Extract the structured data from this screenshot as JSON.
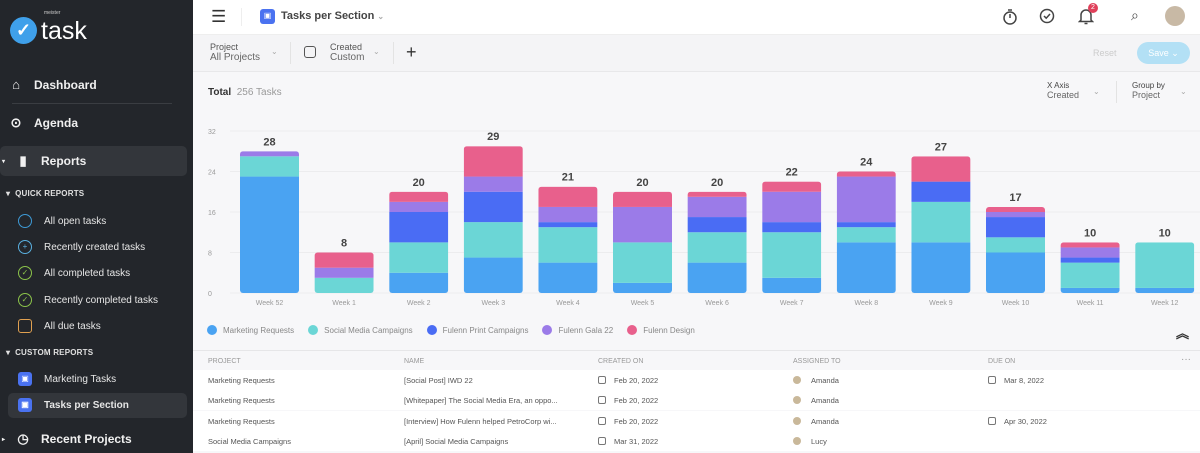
{
  "app": {
    "logo_small": "meister",
    "logo": "task"
  },
  "sidebar": {
    "nav": [
      {
        "label": "Dashboard",
        "icon": "home-icon"
      },
      {
        "label": "Agenda",
        "icon": "agenda-icon"
      },
      {
        "label": "Reports",
        "icon": "bar-chart-icon"
      }
    ],
    "quick_reports_title": "QUICK REPORTS",
    "quick_reports": [
      {
        "label": "All open tasks",
        "icon": "circle-icon",
        "color": "#3e9ad6"
      },
      {
        "label": "Recently created tasks",
        "icon": "plus-circle-icon",
        "color": "#5ab0e0"
      },
      {
        "label": "All completed tasks",
        "icon": "check-circle-icon",
        "color": "#8bc34a"
      },
      {
        "label": "Recently completed tasks",
        "icon": "check-circle-icon",
        "color": "#8bc34a"
      },
      {
        "label": "All due tasks",
        "icon": "calendar-icon",
        "color": "#e0a050"
      }
    ],
    "custom_reports_title": "CUSTOM REPORTS",
    "custom_reports": [
      {
        "label": "Marketing Tasks"
      },
      {
        "label": "Tasks per Section"
      }
    ],
    "recent_projects": "Recent Projects"
  },
  "header": {
    "title": "Tasks per Section",
    "notification_count": "2"
  },
  "toolbar": {
    "project_label": "Project",
    "project_value": "All Projects",
    "created_label": "Created",
    "created_value": "Custom",
    "add": "+",
    "reset": "Reset",
    "save": "Save"
  },
  "summary": {
    "total_label": "Total",
    "total_value": "256 Tasks",
    "xaxis_label": "X Axis",
    "xaxis_value": "Created",
    "groupby_label": "Group by",
    "groupby_value": "Project"
  },
  "chart_data": {
    "type": "bar",
    "stacked": true,
    "categories": [
      "Week 52",
      "Week 1",
      "Week 2",
      "Week 3",
      "Week 4",
      "Week 5",
      "Week 6",
      "Week 7",
      "Week 8",
      "Week 9",
      "Week 10",
      "Week 11",
      "Week 12"
    ],
    "totals": [
      28,
      8,
      20,
      29,
      21,
      20,
      20,
      22,
      24,
      27,
      17,
      10,
      10
    ],
    "yticks": [
      0,
      8,
      16,
      24,
      32
    ],
    "ylim": [
      0,
      32
    ],
    "grid": true,
    "legend": "bottom-left",
    "series": [
      {
        "name": "Marketing Requests",
        "color": "#4aa3f2",
        "values": [
          23,
          0,
          4,
          7,
          6,
          2,
          6,
          3,
          10,
          10,
          8,
          1,
          1
        ]
      },
      {
        "name": "Social Media Campaigns",
        "color": "#6bd6d6",
        "values": [
          4,
          3,
          6,
          7,
          7,
          8,
          6,
          9,
          3,
          8,
          3,
          5,
          9
        ]
      },
      {
        "name": "Fulenn Print Campaigns",
        "color": "#4a6cf4",
        "values": [
          0,
          0,
          6,
          6,
          1,
          0,
          3,
          2,
          1,
          4,
          4,
          1,
          0
        ]
      },
      {
        "name": "Fulenn Gala 22",
        "color": "#9b7be8",
        "values": [
          1,
          2,
          2,
          3,
          3,
          7,
          4,
          6,
          9,
          0,
          1,
          2,
          0
        ]
      },
      {
        "name": "Fulenn Design",
        "color": "#e8608c",
        "values": [
          0,
          3,
          2,
          6,
          4,
          3,
          1,
          2,
          1,
          5,
          1,
          1,
          0
        ]
      }
    ]
  },
  "table": {
    "headers": [
      "PROJECT",
      "NAME",
      "CREATED ON",
      "ASSIGNED TO",
      "DUE ON"
    ],
    "rows": [
      {
        "project": "Marketing Requests",
        "name": "[Social Post] IWD 22",
        "created": "Feb 20, 2022",
        "assigned": "Amanda",
        "due": "Mar 8, 2022"
      },
      {
        "project": "Marketing Requests",
        "name": "[Whitepaper] The Social Media Era, an oppo...",
        "created": "Feb 20, 2022",
        "assigned": "Amanda",
        "due": ""
      },
      {
        "project": "Marketing Requests",
        "name": "[Interview] How Fulenn helped PetroCorp wi...",
        "created": "Feb 20, 2022",
        "assigned": "Amanda",
        "due": "Apr 30, 2022"
      },
      {
        "project": "Social Media Campaigns",
        "name": "[April] Social Media Campaigns",
        "created": "Mar 31, 2022",
        "assigned": "Lucy",
        "due": ""
      }
    ]
  }
}
